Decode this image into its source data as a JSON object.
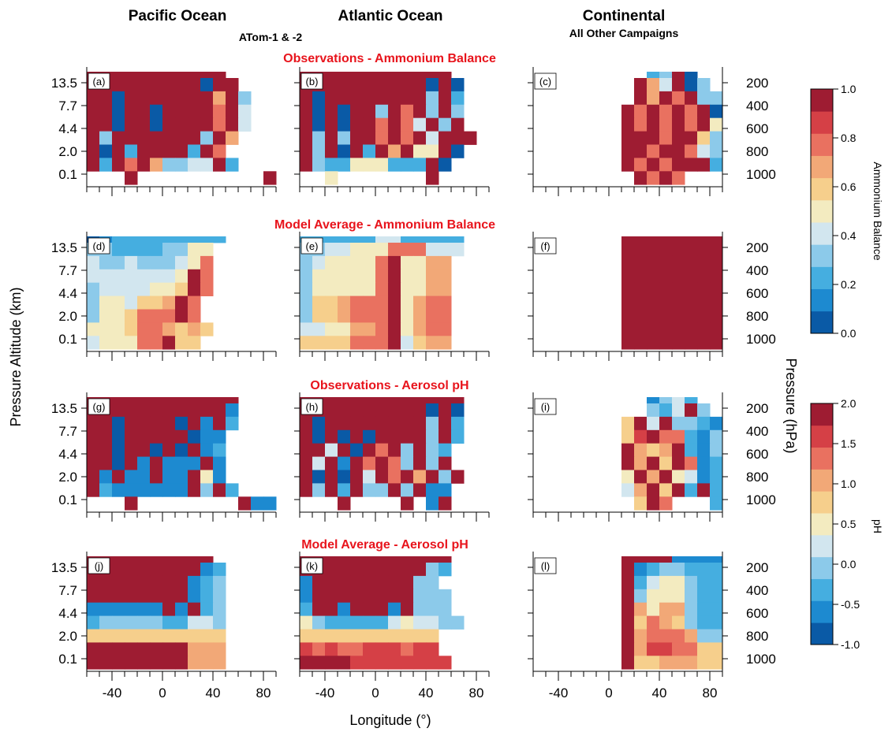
{
  "headers": {
    "columns": [
      "Pacific Ocean",
      "Atlantic Ocean",
      "Continental"
    ],
    "column_subtitles": [
      "ATom-1 & -2",
      "",
      "All Other Campaigns"
    ],
    "rows": [
      "Observations - Ammonium Balance",
      "Model Average - Ammonium Balance",
      "Observations - Aerosol pH",
      "Model Average - Aerosol pH"
    ]
  },
  "axes": {
    "xlabel": "Longitude (°)",
    "ylabel_left": "Pressure Altitude (km)",
    "ylabel_right": "Pressure (hPa)",
    "x_ticks": [
      "-40",
      "0",
      "40",
      "80"
    ],
    "y_ticks_left": [
      "13.5",
      "7.7",
      "4.4",
      "2.0",
      "0.1"
    ],
    "y_ticks_right": [
      "200",
      "400",
      "600",
      "800",
      "1000"
    ]
  },
  "colorbars": [
    {
      "title": "Ammonium Balance",
      "ticks": [
        "0.0",
        "0.2",
        "0.4",
        "0.6",
        "0.8",
        "1.0"
      ],
      "min": 0.0,
      "max": 1.0
    },
    {
      "title": "pH",
      "ticks": [
        "-1.0",
        "-0.5",
        "0.0",
        "0.5",
        "1.0",
        "1.5",
        "2.0"
      ],
      "min": -1.0,
      "max": 2.0
    }
  ],
  "palette": [
    "#0a5aa6",
    "#1d8ad0",
    "#45aee0",
    "#8ccaea",
    "#d2e6ef",
    "#f3ebc0",
    "#f6cf8c",
    "#f2a877",
    "#e97160",
    "#d54046",
    "#9e1c32"
  ],
  "chart_data": {
    "type": "heatmap",
    "x_range": [
      -60,
      90
    ],
    "x_ticks": [
      -40,
      0,
      40,
      80
    ],
    "cell_width_deg": 10,
    "levels": [
      {
        "top": 13.5,
        "bottom": 9.5
      },
      {
        "top": 9.5,
        "bottom": 7.7
      },
      {
        "top": 7.7,
        "bottom": 6.0
      },
      {
        "top": 6.0,
        "bottom": 4.4
      },
      {
        "top": 4.4,
        "bottom": 3.0
      },
      {
        "top": 3.0,
        "bottom": 2.0
      },
      {
        "top": 2.0,
        "bottom": 1.0
      },
      {
        "top": 1.0,
        "bottom": 0.1
      },
      {
        "top": 0.1,
        "bottom": 0.0
      }
    ],
    "panels": [
      {
        "label": "(a)",
        "colorbar": 0,
        "x_start": -60,
        "rows": [
          "AAAAAAAAAAA",
          "AAAAAAAAA0AA",
          "AA0AAAAAAA7A3",
          "AA0AA0AAAA8A4",
          "AA0AA0AAAA8A4",
          "A3AAAAAAA3A7",
          "A0A2AAAA2A8",
          "A2A8A73344A2",
          "...A..........A2"
        ]
      },
      {
        "label": "(b)",
        "colorbar": 0,
        "x_start": -60,
        "rows": [
          "AAAAAAAAAAAA.",
          "AAAAAAAAAA0A0",
          "A0AAAAAAAA3A2",
          "A0A0AA3A8A3A3",
          "A0A0AA8A84A3A",
          "A3A3AA8A8A4AAA",
          "A3A0A2A7A55A0",
          "A322555222A0",
          "..5.......A.."
        ]
      },
      {
        "label": "(c)",
        "colorbar": 0,
        "x_start": 10,
        "rows": [
          "..23A0",
          ".A74A03",
          ".A7A8A33",
          "A8A8A8A0",
          "A8A8A8A54",
          "AAA8AA633",
          "AA8AA8433",
          "A8A8AAA23",
          ".A8A8....."
        ]
      },
      {
        "label": "(d)",
        "colorbar": 1,
        "x_start": -60,
        "rows": [
          "01222222222",
          "3322223355",
          "4334333458",
          "44444445A8",
          "34444556A8",
          "3554667A8",
          "3556888A8",
          "5556887676",
          "455588A66"
        ]
      },
      {
        "label": "(e)",
        "colorbar": 1,
        "x_start": -60,
        "rows": [
          "2222224422222",
          "3344555888444",
          "3455558A5577",
          "3555558A5577",
          "3555558A5577",
          "3667888A5788",
          "3667888A5788",
          "4455778A5788",
          "6666888A4677"
        ]
      },
      {
        "label": "(f)",
        "colorbar": 1,
        "x_start": 10,
        "rows": [
          "AAAAAAAAA77",
          "AAAAAAAAAAA",
          "AAAAAAAAAAA",
          "AAAAAAAAAAA",
          "AAAAAAAAAAA",
          "AAAAAAAAAAA",
          "AAAAAAAAAAA",
          "AAAAAAAAAAA",
          "AAAAAAAAAAA"
        ]
      },
      {
        "label": "(g)",
        "colorbar": 2,
        "x_start": -60,
        "rows": [
          "AAAAAAAAAAAA",
          "AAAAAAAAAAA1",
          "AA0AAAA0A1A2",
          "AA0AAAAA011",
          "AA0AA0A0A12",
          "AA0A1A111A1",
          "A1A11A11A51",
          "A2111111A3A2",
          "...A........A11"
        ]
      },
      {
        "label": "(h)",
        "colorbar": 2,
        "x_start": -60,
        "rows": [
          "AAAAAAAAAAAAA",
          "AAAAAAAAAA0A0",
          "A0AAAAAAAA3A2",
          "A0A0A0AAAA3A2",
          "AA4A0A8A3A32",
          "A4A1A8A83A3A",
          "A0A0A4A8A7A3A",
          "A3A2A33A3A11",
          "...A....A.1A."
        ]
      },
      {
        "label": "(i)",
        "colorbar": 2,
        "x_start": 10,
        "rows": [
          "..1342",
          "..324A3",
          "6A4A3321",
          "69A88213",
          "A767A213",
          "A7A6A812",
          "5A7A5412",
          "47A6A2A2",
          ".6A8...2"
        ]
      },
      {
        "label": "(j)",
        "colorbar": 3,
        "x_start": -60,
        "rows": [
          "AAAAAAAAAA",
          "AAAAAAAAA12",
          "AAAAAAAA123",
          "AAAAAAAA123",
          "111111A1A23",
          "23333322443",
          "66666666666",
          "AAAAAAAA777",
          "AAAAAAAA777"
        ]
      },
      {
        "label": "(k)",
        "colorbar": 3,
        "x_start": -60,
        "rows": [
          "AAAAAAAAAAAA",
          "AAAAAAAAAA32",
          "1AAAAAAAA33",
          "1AAAAAAAA333",
          "2AA1AAA1A333",
          "5322222454433",
          "66666666666",
          "98988999899",
          "AAAA99999999"
        ]
      },
      {
        "label": "(l)",
        "colorbar": 3,
        "x_start": 10,
        "rows": [
          "AAAA1111",
          "A1233222",
          "A2455322",
          "A3555322",
          "A7577322",
          "A6876322",
          "A7888733",
          "A7998866",
          "A6677766"
        ]
      }
    ]
  }
}
